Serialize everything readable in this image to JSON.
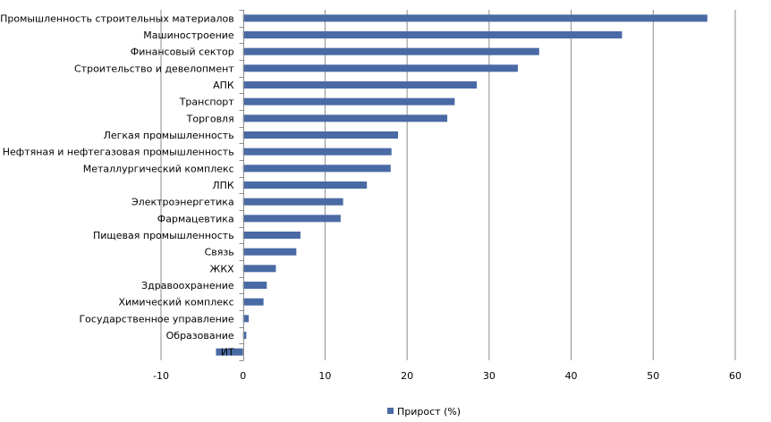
{
  "chart_data": {
    "type": "bar",
    "orientation": "horizontal",
    "categories": [
      "Промышленность строительных материалов",
      "Машиностроение",
      "Финансовый сектор",
      "Строительство и девелопмент",
      "АПК",
      "Транспорт",
      "Торговля",
      "Легкая промышленность",
      "Нефтяная  и нефтегазовая промышленность",
      "Металлургический комплекс",
      "ЛПК",
      "Электроэнергетика",
      "Фармацевтика",
      "Пищевая промышленность",
      "Связь",
      "ЖКХ",
      "Здравоохранение",
      "Химический комплекс",
      "Государственное управление",
      "Образование",
      "ИТ"
    ],
    "series": [
      {
        "name": "Прирост (%)",
        "color": "#4a6aa5",
        "values": [
          56.6,
          46.2,
          36.1,
          33.5,
          28.5,
          25.8,
          24.9,
          18.9,
          18.1,
          18.0,
          15.1,
          12.2,
          11.9,
          7.0,
          6.5,
          4.0,
          2.9,
          2.5,
          0.7,
          0.4,
          -3.3
        ]
      }
    ],
    "xlim": [
      -10,
      60
    ],
    "xticks": [
      "-10",
      "0",
      "10",
      "20",
      "30",
      "40",
      "50",
      "60"
    ],
    "grid": true,
    "legend_position": "bottom"
  }
}
